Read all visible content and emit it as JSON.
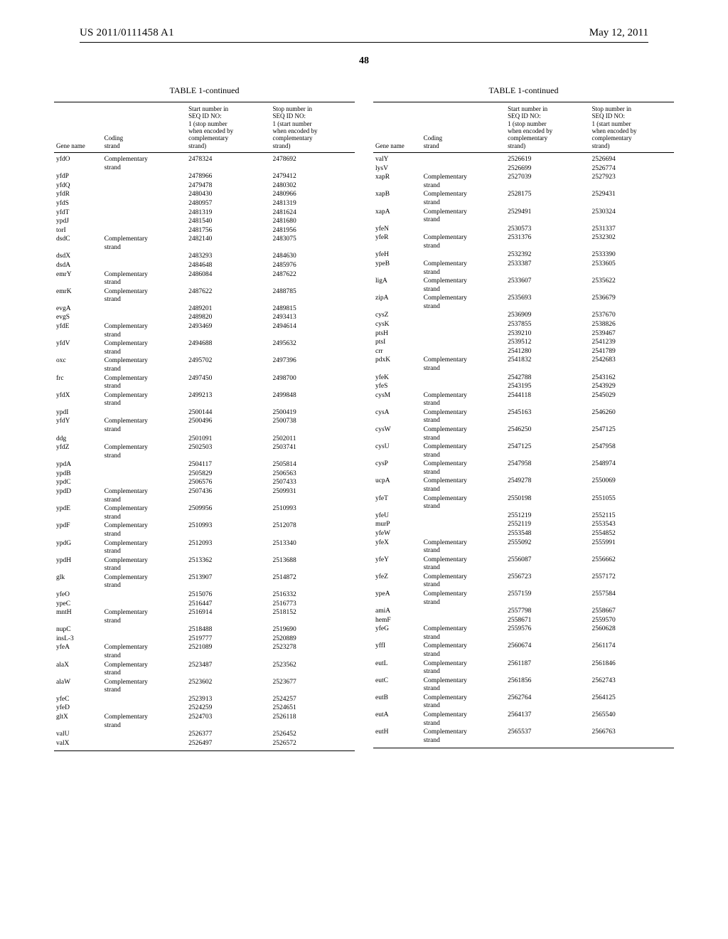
{
  "doc_id": "US 2011/0111458 A1",
  "doc_date": "May 12, 2011",
  "page_number": "48",
  "table_title": "TABLE 1-continued",
  "headers": {
    "gene": "Gene name",
    "strand": "Coding\nstrand",
    "start": "Start number in\nSEQ ID NO:\n1 (stop number\nwhen encoded by\ncomplementary\nstrand)",
    "stop": "Stop number in\nSEQ ID NO:\n1 (start number\nwhen encoded by\ncomplementary\nstrand)"
  },
  "comp": "Complementary strand",
  "left": [
    [
      "yfdO",
      "C",
      "2478324",
      "2478692"
    ],
    [
      "yfdP",
      "",
      "2478966",
      "2479412"
    ],
    [
      "yfdQ",
      "",
      "2479478",
      "2480302"
    ],
    [
      "yfdR",
      "",
      "2480430",
      "2480966"
    ],
    [
      "yfdS",
      "",
      "2480957",
      "2481319"
    ],
    [
      "yfdT",
      "",
      "2481319",
      "2481624"
    ],
    [
      "ypdJ",
      "",
      "2481540",
      "2481680"
    ],
    [
      "torI",
      "",
      "2481756",
      "2481956"
    ],
    [
      "dsdC",
      "C",
      "2482140",
      "2483075"
    ],
    [
      "dsdX",
      "",
      "2483293",
      "2484630"
    ],
    [
      "dsdA",
      "",
      "2484648",
      "2485976"
    ],
    [
      "emrY",
      "C",
      "2486084",
      "2487622"
    ],
    [
      "emrK",
      "C",
      "2487622",
      "2488785"
    ],
    [
      "evgA",
      "",
      "2489201",
      "2489815"
    ],
    [
      "evgS",
      "",
      "2489820",
      "2493413"
    ],
    [
      "yfdE",
      "C",
      "2493469",
      "2494614"
    ],
    [
      "yfdV",
      "C",
      "2494688",
      "2495632"
    ],
    [
      "oxc",
      "C",
      "2495702",
      "2497396"
    ],
    [
      "frc",
      "C",
      "2497450",
      "2498700"
    ],
    [
      "yfdX",
      "C",
      "2499213",
      "2499848"
    ],
    [
      "ypdI",
      "",
      "2500144",
      "2500419"
    ],
    [
      "yfdY",
      "C",
      "2500496",
      "2500738"
    ],
    [
      "ddg",
      "",
      "2501091",
      "2502011"
    ],
    [
      "yfdZ",
      "C",
      "2502503",
      "2503741"
    ],
    [
      "ypdA",
      "",
      "2504117",
      "2505814"
    ],
    [
      "ypdB",
      "",
      "2505829",
      "2506563"
    ],
    [
      "ypdC",
      "",
      "2506576",
      "2507433"
    ],
    [
      "ypdD",
      "C",
      "2507436",
      "2509931"
    ],
    [
      "ypdE",
      "C",
      "2509956",
      "2510993"
    ],
    [
      "ypdF",
      "C",
      "2510993",
      "2512078"
    ],
    [
      "ypdG",
      "C",
      "2512093",
      "2513340"
    ],
    [
      "ypdH",
      "C",
      "2513362",
      "2513688"
    ],
    [
      "glk",
      "C",
      "2513907",
      "2514872"
    ],
    [
      "yfeO",
      "",
      "2515076",
      "2516332"
    ],
    [
      "ypeC",
      "",
      "2516447",
      "2516773"
    ],
    [
      "mntH",
      "C",
      "2516914",
      "2518152"
    ],
    [
      "nupC",
      "",
      "2518488",
      "2519690"
    ],
    [
      "insL-3",
      "",
      "2519777",
      "2520889"
    ],
    [
      "yfeA",
      "C",
      "2521089",
      "2523278"
    ],
    [
      "alaX",
      "C",
      "2523487",
      "2523562"
    ],
    [
      "alaW",
      "C",
      "2523602",
      "2523677"
    ],
    [
      "yfeC",
      "",
      "2523913",
      "2524257"
    ],
    [
      "yfeD",
      "",
      "2524259",
      "2524651"
    ],
    [
      "gltX",
      "C",
      "2524703",
      "2526118"
    ],
    [
      "valU",
      "",
      "2526377",
      "2526452"
    ],
    [
      "valX",
      "",
      "2526497",
      "2526572"
    ]
  ],
  "right": [
    [
      "valY",
      "",
      "2526619",
      "2526694"
    ],
    [
      "lysV",
      "",
      "2526699",
      "2526774"
    ],
    [
      "xapR",
      "C",
      "2527039",
      "2527923"
    ],
    [
      "xapB",
      "C",
      "2528175",
      "2529431"
    ],
    [
      "xapA",
      "C",
      "2529491",
      "2530324"
    ],
    [
      "yfeN",
      "",
      "2530573",
      "2531337"
    ],
    [
      "yfeR",
      "C",
      "2531376",
      "2532302"
    ],
    [
      "yfeH",
      "",
      "2532392",
      "2533390"
    ],
    [
      "ypeB",
      "C",
      "2533387",
      "2533605"
    ],
    [
      "ligA",
      "C",
      "2533607",
      "2535622"
    ],
    [
      "zipA",
      "C",
      "2535693",
      "2536679"
    ],
    [
      "cysZ",
      "",
      "2536909",
      "2537670"
    ],
    [
      "cysK",
      "",
      "2537855",
      "2538826"
    ],
    [
      "ptsH",
      "",
      "2539210",
      "2539467"
    ],
    [
      "ptsI",
      "",
      "2539512",
      "2541239"
    ],
    [
      "crr",
      "",
      "2541280",
      "2541789"
    ],
    [
      "pdxK",
      "C",
      "2541832",
      "2542683"
    ],
    [
      "yfeK",
      "",
      "2542788",
      "2543162"
    ],
    [
      "yfeS",
      "",
      "2543195",
      "2543929"
    ],
    [
      "cysM",
      "C",
      "2544118",
      "2545029"
    ],
    [
      "cysA",
      "C",
      "2545163",
      "2546260"
    ],
    [
      "cysW",
      "C",
      "2546250",
      "2547125"
    ],
    [
      "cysU",
      "C",
      "2547125",
      "2547958"
    ],
    [
      "cysP",
      "C",
      "2547958",
      "2548974"
    ],
    [
      "ucpA",
      "C",
      "2549278",
      "2550069"
    ],
    [
      "yfeT",
      "C",
      "2550198",
      "2551055"
    ],
    [
      "yfeU",
      "",
      "2551219",
      "2552115"
    ],
    [
      "murP",
      "",
      "2552119",
      "2553543"
    ],
    [
      "yfeW",
      "",
      "2553548",
      "2554852"
    ],
    [
      "yfeX",
      "C",
      "2555092",
      "2555991"
    ],
    [
      "yfeY",
      "C",
      "2556087",
      "2556662"
    ],
    [
      "yfeZ",
      "C",
      "2556723",
      "2557172"
    ],
    [
      "ypeA",
      "C",
      "2557159",
      "2557584"
    ],
    [
      "amiA",
      "",
      "2557798",
      "2558667"
    ],
    [
      "hemF",
      "",
      "2558671",
      "2559570"
    ],
    [
      "yfeG",
      "C",
      "2559576",
      "2560628"
    ],
    [
      "yffI",
      "C",
      "2560674",
      "2561174"
    ],
    [
      "eutL",
      "C",
      "2561187",
      "2561846"
    ],
    [
      "eutC",
      "C",
      "2561856",
      "2562743"
    ],
    [
      "eutB",
      "C",
      "2562764",
      "2564125"
    ],
    [
      "eutA",
      "C",
      "2564137",
      "2565540"
    ],
    [
      "eutH",
      "C",
      "2565537",
      "2566763"
    ]
  ]
}
